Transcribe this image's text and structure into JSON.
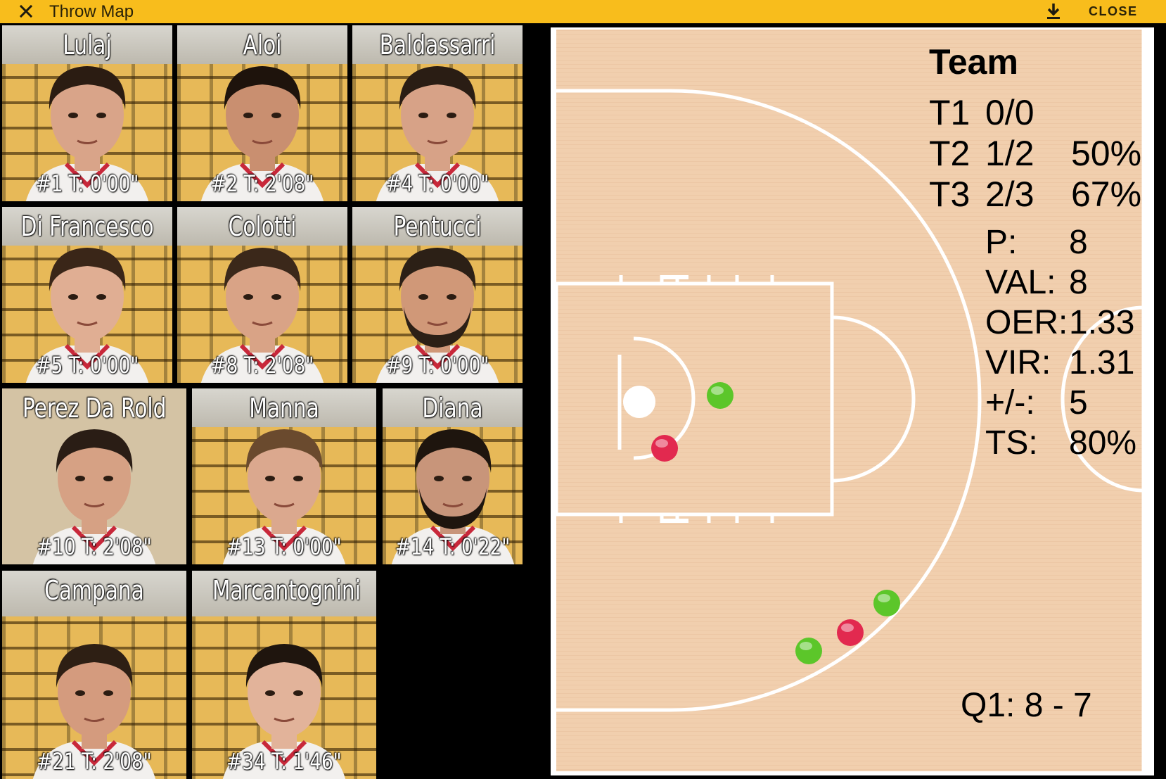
{
  "header": {
    "title": "Throw Map",
    "close_label": "CLOSE",
    "icons": [
      "close-icon",
      "download-icon"
    ],
    "bar_color": "#f8bd1c"
  },
  "players": [
    {
      "name": "Lulaj",
      "info": "#1 T: 0'00\""
    },
    {
      "name": "Aloi",
      "info": "#2 T: 2'08\""
    },
    {
      "name": "Baldassarri",
      "info": "#4 T: 0'00\""
    },
    {
      "name": "Di Francesco",
      "info": "#5 T: 0'00\""
    },
    {
      "name": "Colotti",
      "info": "#8 T: 2'08\""
    },
    {
      "name": "Pentucci",
      "info": "#9 T: 0'00\""
    },
    {
      "name": "Perez Da Rold",
      "info": "#10 T: 2'08\""
    },
    {
      "name": "Manna",
      "info": "#13 T: 0'00\""
    },
    {
      "name": "Diana",
      "info": "#14 T: 0'22\""
    },
    {
      "name": "Campana",
      "info": "#21 T: 2'08\""
    },
    {
      "name": "Marcantognini",
      "info": "#34 T: 1'46\""
    }
  ],
  "stats": {
    "title": "Team",
    "t1": {
      "label": "T1",
      "value": "0/0",
      "pct": ""
    },
    "t2": {
      "label": "T2",
      "value": "1/2",
      "pct": "50%"
    },
    "t3": {
      "label": "T3",
      "value": "2/3",
      "pct": "67%"
    },
    "p": {
      "label": "P:",
      "value": "8"
    },
    "val": {
      "label": "VAL:",
      "value": "8"
    },
    "oer": {
      "label": "OER:",
      "value": "1.33"
    },
    "vir": {
      "label": "VIR:",
      "value": "1.31"
    },
    "pm": {
      "label": "+/-:",
      "value": "5"
    },
    "ts": {
      "label": "TS:",
      "value": "80%"
    }
  },
  "score": "Q1: 8 - 7",
  "shots": [
    {
      "made": true
    },
    {
      "made": false
    },
    {
      "made": true
    },
    {
      "made": false
    },
    {
      "made": true
    }
  ],
  "colors": {
    "made": "#5cc62a",
    "missed": "#e2294f",
    "court": "#f1cfae"
  }
}
